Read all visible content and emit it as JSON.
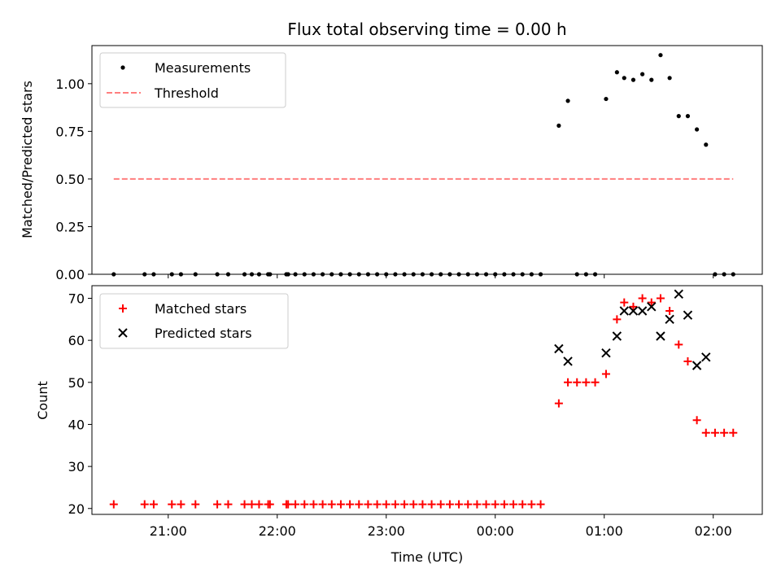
{
  "chart_data": [
    {
      "type": "scatter",
      "title": "Flux total observing time = 0.00 h",
      "xlabel": "",
      "ylabel": "Matched/Predicted stars",
      "ylim": [
        0,
        1.2
      ],
      "yticks": [
        "0.00",
        "0.25",
        "0.50",
        "0.75",
        "1.00"
      ],
      "xlim": [
        "20:18",
        "02:27"
      ],
      "xticks": [
        "21:00",
        "22:00",
        "23:00",
        "00:00",
        "01:00",
        "02:00"
      ],
      "legend": {
        "placement": "upper-left",
        "entries": [
          "Measurements",
          "Threshold"
        ]
      },
      "series": [
        {
          "name": "Measurements",
          "marker": "dot",
          "color": "#000000",
          "points": [
            [
              "20:30",
              0
            ],
            [
              "20:47",
              0
            ],
            [
              "20:52",
              0
            ],
            [
              "21:02",
              0
            ],
            [
              "21:07",
              0
            ],
            [
              "21:15",
              0
            ],
            [
              "21:27",
              0
            ],
            [
              "21:33",
              0
            ],
            [
              "21:42",
              0
            ],
            [
              "21:46",
              0
            ],
            [
              "21:50",
              0
            ],
            [
              "21:55",
              0
            ],
            [
              "21:56",
              0
            ],
            [
              "22:05",
              0
            ],
            [
              "22:06",
              0
            ],
            [
              "22:10",
              0
            ],
            [
              "22:15",
              0
            ],
            [
              "22:20",
              0
            ],
            [
              "22:25",
              0
            ],
            [
              "22:30",
              0
            ],
            [
              "22:35",
              0
            ],
            [
              "22:40",
              0
            ],
            [
              "22:45",
              0
            ],
            [
              "22:50",
              0
            ],
            [
              "22:55",
              0
            ],
            [
              "23:00",
              0
            ],
            [
              "23:05",
              0
            ],
            [
              "23:10",
              0
            ],
            [
              "23:15",
              0
            ],
            [
              "23:20",
              0
            ],
            [
              "23:25",
              0
            ],
            [
              "23:30",
              0
            ],
            [
              "23:35",
              0
            ],
            [
              "23:40",
              0
            ],
            [
              "23:45",
              0
            ],
            [
              "23:50",
              0
            ],
            [
              "23:55",
              0
            ],
            [
              "00:00",
              0
            ],
            [
              "00:05",
              0
            ],
            [
              "00:10",
              0
            ],
            [
              "00:15",
              0
            ],
            [
              "00:20",
              0
            ],
            [
              "00:25",
              0
            ],
            [
              "00:35",
              0.78
            ],
            [
              "00:40",
              0.91
            ],
            [
              "00:45",
              0
            ],
            [
              "00:50",
              0
            ],
            [
              "00:55",
              0
            ],
            [
              "01:01",
              0.92
            ],
            [
              "01:07",
              1.06
            ],
            [
              "01:11",
              1.03
            ],
            [
              "01:16",
              1.02
            ],
            [
              "01:21",
              1.05
            ],
            [
              "01:26",
              1.02
            ],
            [
              "01:31",
              1.15
            ],
            [
              "01:36",
              1.03
            ],
            [
              "01:41",
              0.83
            ],
            [
              "01:46",
              0.83
            ],
            [
              "01:51",
              0.76
            ],
            [
              "01:56",
              0.68
            ],
            [
              "02:01",
              0
            ],
            [
              "02:06",
              0
            ],
            [
              "02:11",
              0
            ]
          ]
        },
        {
          "name": "Threshold",
          "marker": "dashed-line",
          "color": "#ff7f7f",
          "points": [
            [
              "20:30",
              0.5
            ],
            [
              "02:11",
              0.5
            ]
          ]
        }
      ]
    },
    {
      "type": "scatter",
      "title": "",
      "xlabel": "Time (UTC)",
      "ylabel": "Count",
      "ylim": [
        18.6,
        73.0
      ],
      "yticks": [
        "20",
        "30",
        "40",
        "50",
        "60",
        "70"
      ],
      "xlim": [
        "20:18",
        "02:27"
      ],
      "xticks": [
        "21:00",
        "22:00",
        "23:00",
        "00:00",
        "01:00",
        "02:00"
      ],
      "legend": {
        "placement": "upper-left",
        "entries": [
          "Matched stars",
          "Predicted stars"
        ]
      },
      "series": [
        {
          "name": "Matched stars",
          "marker": "plus",
          "color": "#ff0000",
          "points": [
            [
              "20:30",
              21
            ],
            [
              "20:47",
              21
            ],
            [
              "20:52",
              21
            ],
            [
              "21:02",
              21
            ],
            [
              "21:07",
              21
            ],
            [
              "21:15",
              21
            ],
            [
              "21:27",
              21
            ],
            [
              "21:33",
              21
            ],
            [
              "21:42",
              21
            ],
            [
              "21:46",
              21
            ],
            [
              "21:50",
              21
            ],
            [
              "21:55",
              21
            ],
            [
              "21:56",
              21
            ],
            [
              "22:05",
              21
            ],
            [
              "22:06",
              21
            ],
            [
              "22:10",
              21
            ],
            [
              "22:15",
              21
            ],
            [
              "22:20",
              21
            ],
            [
              "22:25",
              21
            ],
            [
              "22:30",
              21
            ],
            [
              "22:35",
              21
            ],
            [
              "22:40",
              21
            ],
            [
              "22:45",
              21
            ],
            [
              "22:50",
              21
            ],
            [
              "22:55",
              21
            ],
            [
              "23:00",
              21
            ],
            [
              "23:05",
              21
            ],
            [
              "23:10",
              21
            ],
            [
              "23:15",
              21
            ],
            [
              "23:20",
              21
            ],
            [
              "23:25",
              21
            ],
            [
              "23:30",
              21
            ],
            [
              "23:35",
              21
            ],
            [
              "23:40",
              21
            ],
            [
              "23:45",
              21
            ],
            [
              "23:50",
              21
            ],
            [
              "23:55",
              21
            ],
            [
              "00:00",
              21
            ],
            [
              "00:05",
              21
            ],
            [
              "00:10",
              21
            ],
            [
              "00:15",
              21
            ],
            [
              "00:20",
              21
            ],
            [
              "00:25",
              21
            ],
            [
              "00:35",
              45
            ],
            [
              "00:40",
              50
            ],
            [
              "00:45",
              50
            ],
            [
              "00:50",
              50
            ],
            [
              "00:55",
              50
            ],
            [
              "01:01",
              52
            ],
            [
              "01:07",
              65
            ],
            [
              "01:11",
              69
            ],
            [
              "01:16",
              68
            ],
            [
              "01:21",
              70
            ],
            [
              "01:26",
              69
            ],
            [
              "01:31",
              70
            ],
            [
              "01:36",
              67
            ],
            [
              "01:41",
              59
            ],
            [
              "01:46",
              55
            ],
            [
              "01:51",
              41
            ],
            [
              "01:56",
              38
            ],
            [
              "02:01",
              38
            ],
            [
              "02:06",
              38
            ],
            [
              "02:11",
              38
            ]
          ]
        },
        {
          "name": "Predicted stars",
          "marker": "x",
          "color": "#000000",
          "points": [
            [
              "00:35",
              58
            ],
            [
              "00:40",
              55
            ],
            [
              "01:01",
              57
            ],
            [
              "01:07",
              61
            ],
            [
              "01:11",
              67
            ],
            [
              "01:16",
              67
            ],
            [
              "01:21",
              67
            ],
            [
              "01:26",
              68
            ],
            [
              "01:31",
              61
            ],
            [
              "01:36",
              65
            ],
            [
              "01:41",
              71
            ],
            [
              "01:46",
              66
            ],
            [
              "01:51",
              54
            ],
            [
              "01:56",
              56
            ]
          ]
        }
      ]
    }
  ]
}
